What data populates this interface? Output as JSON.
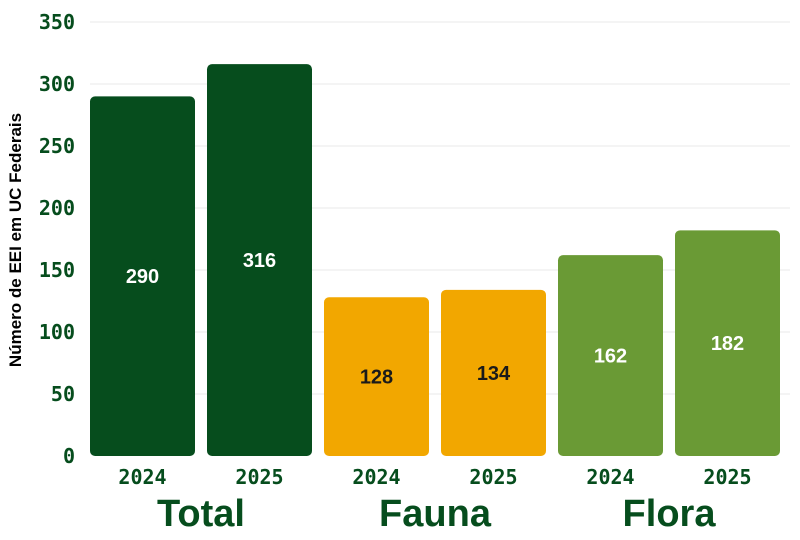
{
  "chart_data": {
    "type": "bar",
    "ylabel": "Número de EEI em UC Federais",
    "ylim": [
      0,
      350
    ],
    "yticks": [
      "0",
      "50",
      "100",
      "150",
      "200",
      "250",
      "300",
      "350"
    ],
    "grid": true,
    "groups": [
      {
        "label": "Total",
        "color": "#064d1d",
        "value_color": "#ffffff",
        "bars": [
          {
            "x": "2024",
            "value": 290,
            "label": "290"
          },
          {
            "x": "2025",
            "value": 316,
            "label": "316"
          }
        ]
      },
      {
        "label": "Fauna",
        "color": "#f2a700",
        "value_color": "#1a1a1a",
        "bars": [
          {
            "x": "2024",
            "value": 128,
            "label": "128"
          },
          {
            "x": "2025",
            "value": 134,
            "label": "134"
          }
        ]
      },
      {
        "label": "Flora",
        "color": "#6a9a35",
        "value_color": "#ffffff",
        "bars": [
          {
            "x": "2024",
            "value": 162,
            "label": "162"
          },
          {
            "x": "2025",
            "value": 182,
            "label": "182"
          }
        ]
      }
    ],
    "text_color": "#064d1d",
    "grid_color": "#e8e8e8"
  }
}
